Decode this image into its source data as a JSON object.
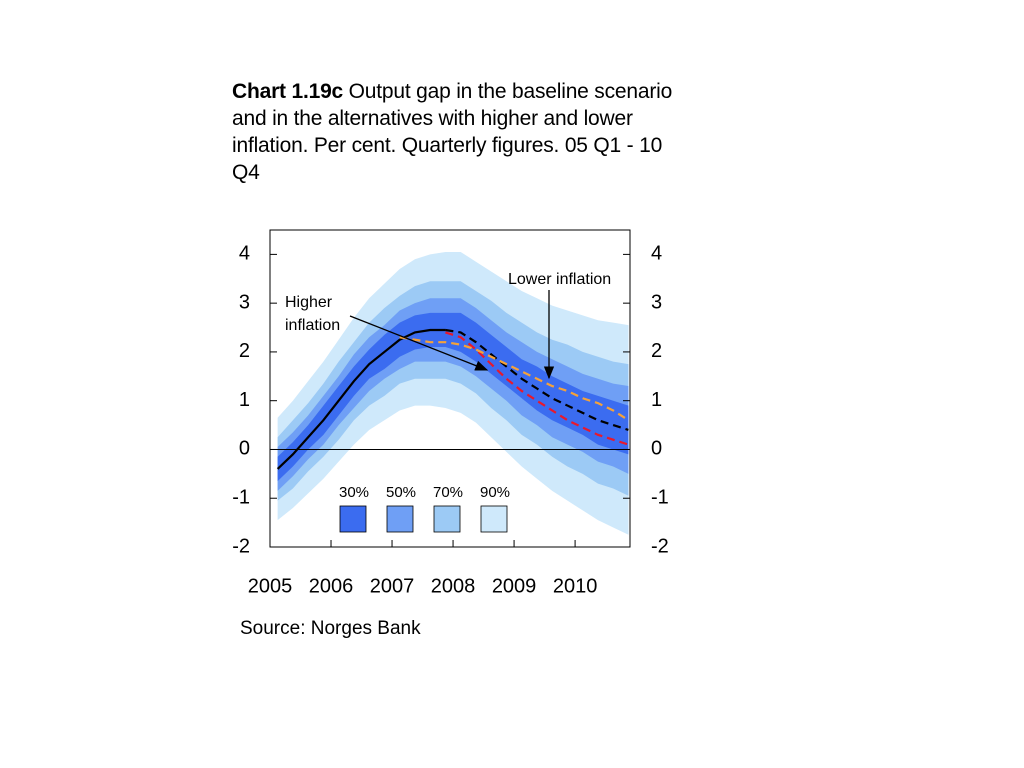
{
  "chart_data": {
    "type": "fan",
    "title_label": "Chart 1.19c",
    "title": "Output gap in the baseline scenario and in the alternatives with higher and lower inflation. Per cent. Quarterly figures. 05 Q1 - 10 Q4",
    "source": "Source: Norges Bank",
    "x": [
      2005.125,
      2005.375,
      2005.625,
      2005.875,
      2006.125,
      2006.375,
      2006.625,
      2006.875,
      2007.125,
      2007.375,
      2007.625,
      2007.875,
      2008.125,
      2008.375,
      2008.625,
      2008.875,
      2009.125,
      2009.375,
      2009.625,
      2009.875,
      2010.125,
      2010.375,
      2010.625,
      2010.875
    ],
    "xlim": [
      2005,
      2010.9
    ],
    "xticks": [
      2005,
      2006,
      2007,
      2008,
      2009,
      2010
    ],
    "ylim": [
      -2,
      4.5
    ],
    "yticks": [
      -2,
      -1,
      0,
      1,
      2,
      3,
      4
    ],
    "bands": [
      {
        "name": "90%",
        "color": "#cfe9fb",
        "upper": [
          0.65,
          1.0,
          1.4,
          1.8,
          2.25,
          2.7,
          3.1,
          3.4,
          3.7,
          3.9,
          4.0,
          4.05,
          4.05,
          3.85,
          3.65,
          3.45,
          3.25,
          3.1,
          2.95,
          2.85,
          2.75,
          2.65,
          2.6,
          2.55
        ],
        "lower": [
          -1.45,
          -1.2,
          -0.9,
          -0.6,
          -0.25,
          0.1,
          0.4,
          0.6,
          0.8,
          0.9,
          0.9,
          0.85,
          0.75,
          0.55,
          0.25,
          -0.05,
          -0.35,
          -0.6,
          -0.85,
          -1.05,
          -1.25,
          -1.45,
          -1.6,
          -1.75
        ]
      },
      {
        "name": "70%",
        "color": "#9ccaf5",
        "upper": [
          0.25,
          0.6,
          0.95,
          1.35,
          1.8,
          2.2,
          2.6,
          2.9,
          3.15,
          3.35,
          3.45,
          3.45,
          3.45,
          3.25,
          3.05,
          2.8,
          2.6,
          2.4,
          2.25,
          2.15,
          2.0,
          1.9,
          1.8,
          1.75
        ],
        "lower": [
          -1.05,
          -0.8,
          -0.45,
          -0.15,
          0.2,
          0.6,
          0.9,
          1.1,
          1.35,
          1.45,
          1.45,
          1.45,
          1.35,
          1.15,
          0.85,
          0.6,
          0.3,
          0.1,
          -0.15,
          -0.35,
          -0.5,
          -0.7,
          -0.8,
          -0.95
        ]
      },
      {
        "name": "50%",
        "color": "#6f9ff5",
        "upper": [
          0.05,
          0.35,
          0.7,
          1.1,
          1.5,
          1.95,
          2.3,
          2.55,
          2.85,
          3.0,
          3.1,
          3.1,
          3.1,
          2.9,
          2.65,
          2.4,
          2.2,
          2.0,
          1.85,
          1.7,
          1.55,
          1.45,
          1.35,
          1.3
        ],
        "lower": [
          -0.85,
          -0.55,
          -0.2,
          0.1,
          0.5,
          0.85,
          1.2,
          1.45,
          1.65,
          1.8,
          1.8,
          1.8,
          1.7,
          1.5,
          1.25,
          1.0,
          0.7,
          0.5,
          0.25,
          0.1,
          -0.05,
          -0.25,
          -0.35,
          -0.5
        ]
      },
      {
        "name": "30%",
        "color": "#3b6cf0",
        "upper": [
          -0.15,
          0.15,
          0.5,
          0.9,
          1.3,
          1.7,
          2.05,
          2.35,
          2.6,
          2.75,
          2.8,
          2.8,
          2.8,
          2.6,
          2.35,
          2.1,
          1.85,
          1.7,
          1.5,
          1.35,
          1.2,
          1.1,
          1.0,
          0.9
        ],
        "lower": [
          -0.65,
          -0.35,
          0.0,
          0.3,
          0.7,
          1.1,
          1.45,
          1.65,
          1.9,
          2.05,
          2.1,
          2.1,
          2.0,
          1.8,
          1.55,
          1.3,
          1.05,
          0.8,
          0.6,
          0.45,
          0.3,
          0.1,
          0.0,
          -0.1
        ]
      }
    ],
    "series": [
      {
        "color": "#000000",
        "dashed": false,
        "values": [
          -0.4,
          -0.1,
          0.25,
          0.6,
          1.0,
          1.4,
          1.75,
          2.0,
          2.25,
          2.4,
          2.45,
          2.45,
          null,
          null,
          null,
          null,
          null,
          null,
          null,
          null,
          null,
          null,
          null,
          null
        ]
      },
      {
        "color": "#000000",
        "dashed": true,
        "values": [
          null,
          null,
          null,
          null,
          null,
          null,
          null,
          null,
          null,
          null,
          null,
          2.45,
          2.4,
          2.2,
          1.95,
          1.7,
          1.45,
          1.25,
          1.05,
          0.9,
          0.75,
          0.6,
          0.5,
          0.4
        ]
      },
      {
        "name": "Higher inflation",
        "color": "#e8192c",
        "dashed": true,
        "values": [
          null,
          null,
          null,
          null,
          null,
          null,
          null,
          null,
          null,
          null,
          null,
          2.4,
          2.3,
          2.05,
          1.75,
          1.45,
          1.2,
          1.0,
          0.8,
          0.6,
          0.45,
          0.3,
          0.2,
          0.1
        ]
      },
      {
        "name": "Lower inflation",
        "color": "#f5a23a",
        "dashed": true,
        "values": [
          null,
          null,
          null,
          null,
          null,
          null,
          null,
          null,
          2.3,
          2.25,
          2.2,
          2.2,
          2.15,
          2.05,
          1.9,
          1.75,
          1.6,
          1.45,
          1.3,
          1.2,
          1.05,
          0.95,
          0.8,
          0.6
        ]
      }
    ]
  }
}
